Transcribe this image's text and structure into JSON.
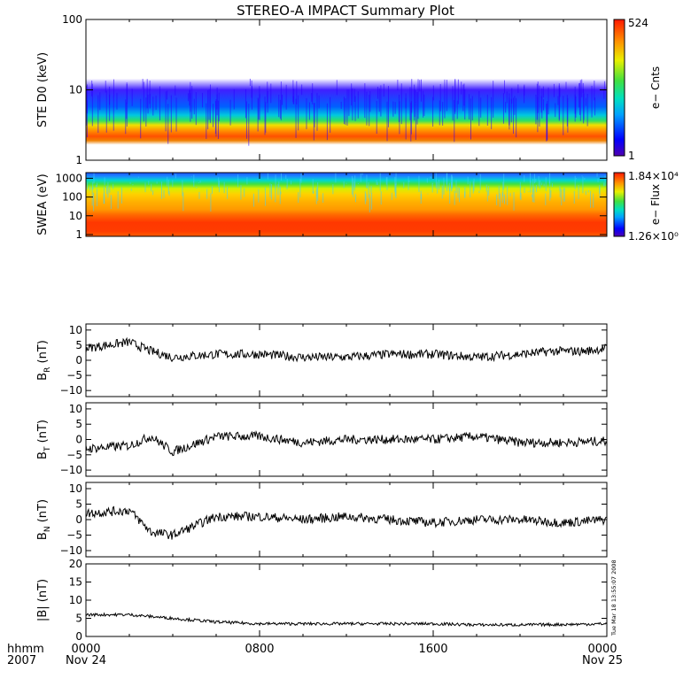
{
  "title": "STEREO-A IMPACT Summary Plot",
  "colors": {
    "ink": "#000000",
    "background": "#ffffff"
  },
  "time_axis": {
    "row_label": "hhmm",
    "year": "2007",
    "ticks": [
      {
        "label": "0000",
        "sub": "Nov 24"
      },
      {
        "label": "0800",
        "sub": ""
      },
      {
        "label": "1600",
        "sub": ""
      },
      {
        "label": "0000",
        "sub": "Nov 25"
      }
    ]
  },
  "timestamp": "Tue Mar 18 13:55:07 2008",
  "chart_data": [
    {
      "type": "heatmap",
      "ylabel": "STE D0 (keV)",
      "yscale": "log",
      "ylim": [
        1,
        100
      ],
      "yticks": [
        "1",
        "10",
        "100"
      ],
      "colorbar": {
        "label": "e− Cnts",
        "max": "524",
        "min": "1"
      }
    },
    {
      "type": "heatmap",
      "ylabel": "SWEA (eV)",
      "yscale": "log",
      "ylim": [
        0.8,
        2000
      ],
      "yticks": [
        "1",
        "10",
        "100",
        "1000"
      ],
      "colorbar": {
        "label": "e− Flux",
        "max": "1.84×10⁴",
        "min": "1.26×10⁰"
      }
    },
    {
      "type": "line",
      "ylabel": "B_R (nT)",
      "ylim": [
        -12,
        12
      ],
      "yticks": [
        "10",
        "5",
        "0",
        "−5",
        "−10"
      ],
      "x_hours": [
        0,
        2,
        3,
        4,
        6,
        8,
        10,
        12,
        14,
        16,
        18,
        20,
        21.5,
        23,
        24
      ],
      "values": [
        4,
        6,
        3,
        1,
        2,
        2,
        1,
        1,
        2,
        2,
        1,
        2,
        3,
        3,
        4
      ]
    },
    {
      "type": "line",
      "ylabel": "B_T (nT)",
      "ylim": [
        -12,
        12
      ],
      "yticks": [
        "10",
        "5",
        "0",
        "−5",
        "−10"
      ],
      "x_hours": [
        0,
        2,
        3,
        4,
        6,
        8,
        10,
        12,
        14,
        16,
        18,
        20,
        22,
        24
      ],
      "values": [
        -3,
        -2,
        1,
        -4,
        1,
        1,
        -1,
        0,
        0,
        0,
        1,
        -1,
        -1,
        -0.5
      ]
    },
    {
      "type": "line",
      "ylabel": "B_N (nT)",
      "ylim": [
        -12,
        12
      ],
      "yticks": [
        "10",
        "5",
        "0",
        "−5",
        "−10"
      ],
      "x_hours": [
        0,
        2,
        3,
        4,
        5,
        6,
        8,
        10,
        12,
        14,
        16,
        18,
        20,
        22,
        24
      ],
      "values": [
        2,
        3,
        -4,
        -5,
        -2,
        1,
        1,
        0,
        1,
        0,
        -1,
        0,
        0,
        -1,
        0
      ]
    },
    {
      "type": "line",
      "ylabel": "|B| (nT)",
      "ylim": [
        0,
        20
      ],
      "yticks": [
        "20",
        "15",
        "10",
        "5",
        "0"
      ],
      "x_hours": [
        0,
        2,
        4,
        6,
        8,
        10,
        12,
        14,
        16,
        18,
        20,
        22,
        24
      ],
      "values": [
        6,
        6,
        5,
        4,
        3.5,
        3.5,
        3.5,
        3.5,
        3.5,
        3.2,
        3.2,
        3.3,
        3.5
      ]
    }
  ]
}
